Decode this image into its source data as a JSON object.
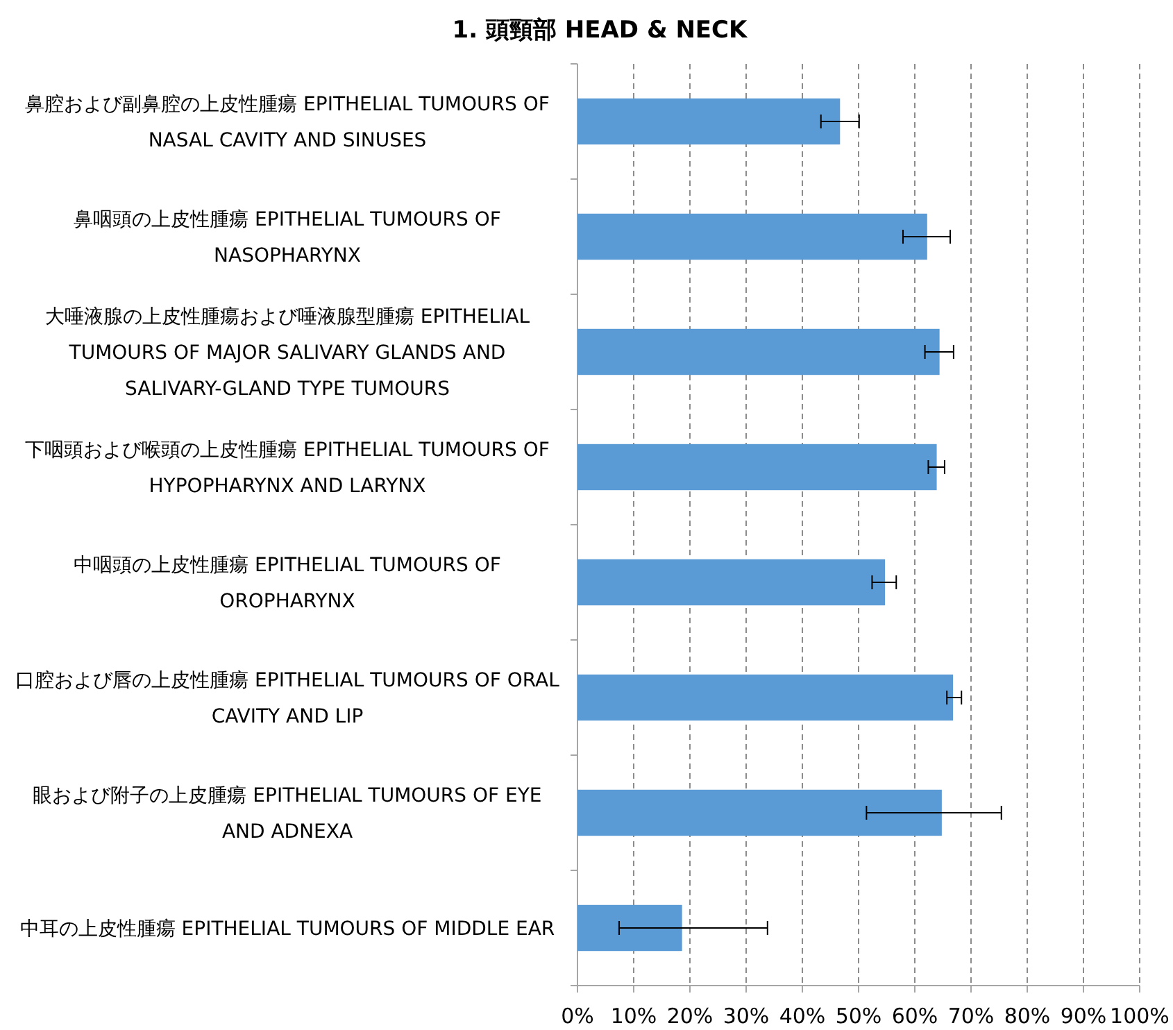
{
  "chart_data": {
    "type": "bar",
    "orientation": "horizontal",
    "title": "1.  頭頸部  HEAD & NECK",
    "categories": [
      "鼻腔および副鼻腔の上皮性腫瘍 EPITHELIAL TUMOURS OF NASAL CAVITY AND SINUSES",
      "鼻咽頭の上皮性腫瘍 EPITHELIAL TUMOURS OF NASOPHARYNX",
      "大唾液腺の上皮性腫瘍および唾液腺型腫瘍 EPITHELIAL TUMOURS OF MAJOR SALIVARY GLANDS AND SALIVARY-GLAND TYPE TUMOURS",
      "下咽頭および喉頭の上皮性腫瘍 EPITHELIAL TUMOURS OF HYPOPHARYNX AND LARYNX",
      "中咽頭の上皮性腫瘍 EPITHELIAL TUMOURS OF OROPHARYNX",
      "口腔および唇の上皮性腫瘍 EPITHELIAL TUMOURS OF ORAL CAVITY AND LIP",
      "眼および附子の上皮腫瘍 EPITHELIAL TUMOURS OF EYE AND ADNEXA",
      "中耳の上皮性腫瘍 EPITHELIAL TUMOURS OF MIDDLE EAR"
    ],
    "values": [
      46.7,
      62.2,
      64.4,
      63.9,
      54.7,
      66.8,
      64.8,
      18.6
    ],
    "errors": [
      [
        43.3,
        50.1
      ],
      [
        57.9,
        66.3
      ],
      [
        61.8,
        66.9
      ],
      [
        62.4,
        65.3
      ],
      [
        52.4,
        56.7
      ],
      [
        65.7,
        68.3
      ],
      [
        51.4,
        75.4
      ],
      [
        7.4,
        33.8
      ]
    ],
    "color": "#5b9bd5",
    "xlim": [
      0,
      100
    ],
    "xticks": [
      {
        "value": 0,
        "label": "0%"
      },
      {
        "value": 10,
        "label": "10%"
      },
      {
        "value": 20,
        "label": "20%"
      },
      {
        "value": 30,
        "label": "30%"
      },
      {
        "value": 40,
        "label": "40%"
      },
      {
        "value": 50,
        "label": "50%"
      },
      {
        "value": 60,
        "label": "60%"
      },
      {
        "value": 70,
        "label": "70%"
      },
      {
        "value": 80,
        "label": "80%"
      },
      {
        "value": 90,
        "label": "90%"
      },
      {
        "value": 100,
        "label": "100%"
      }
    ],
    "grid": "x"
  }
}
